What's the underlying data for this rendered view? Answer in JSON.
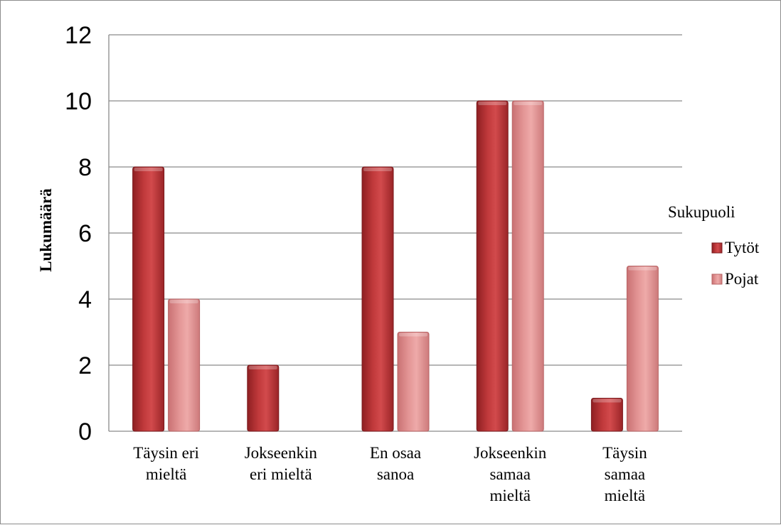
{
  "chart_data": {
    "type": "bar",
    "title": "",
    "ylabel": "Lukumäärä",
    "xlabel": "",
    "ylim": [
      0,
      12
    ],
    "yticks": [
      0,
      2,
      4,
      6,
      8,
      10,
      12
    ],
    "grid": true,
    "legend_title": "Sukupuoli",
    "legend_position": "right",
    "categories": [
      [
        "Täysin eri",
        "mieltä"
      ],
      [
        "Jokseenkin",
        "eri mieltä"
      ],
      [
        "En osaa",
        "sanoa"
      ],
      [
        "Jokseenkin",
        "samaa",
        "mieltä"
      ],
      [
        "Täysin",
        "samaa",
        "mieltä"
      ]
    ],
    "series": [
      {
        "name": "Tytöt",
        "values": [
          8,
          2,
          8,
          10,
          1
        ],
        "color": "#c0393b"
      },
      {
        "name": "Pojat",
        "values": [
          4,
          0,
          3,
          10,
          5
        ],
        "color": "#e39595"
      }
    ]
  }
}
